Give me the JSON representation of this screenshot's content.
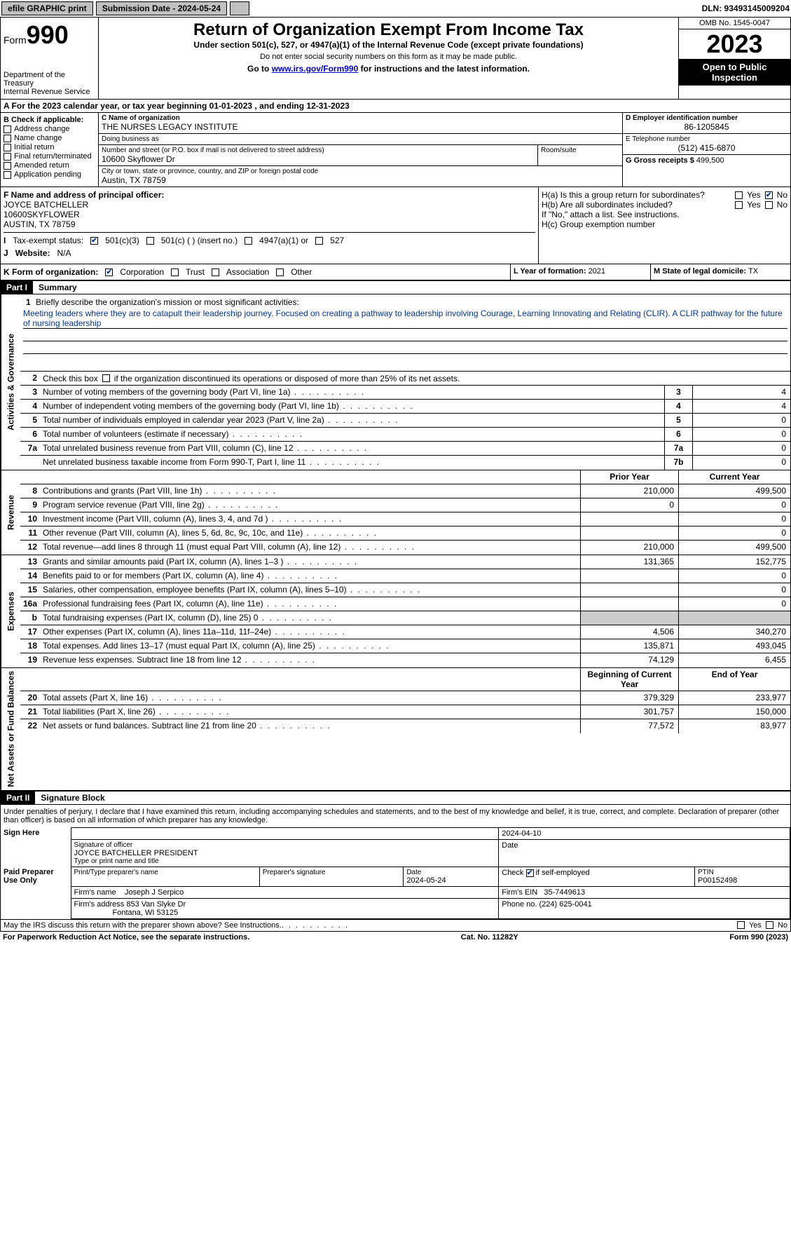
{
  "topbar": {
    "efile": "efile GRAPHIC print",
    "submission_label": "Submission Date - 2024-05-24",
    "dln": "DLN: 93493145009204"
  },
  "header": {
    "form_prefix": "Form",
    "form_number": "990",
    "dept": "Department of the Treasury",
    "irs": "Internal Revenue Service",
    "title": "Return of Organization Exempt From Income Tax",
    "subtitle": "Under section 501(c), 527, or 4947(a)(1) of the Internal Revenue Code (except private foundations)",
    "warn": "Do not enter social security numbers on this form as it may be made public.",
    "goto_prefix": "Go to ",
    "goto_link": "www.irs.gov/Form990",
    "goto_suffix": " for instructions and the latest information.",
    "omb": "OMB No. 1545-0047",
    "year": "2023",
    "inspect": "Open to Public Inspection"
  },
  "rowA": {
    "text_prefix": "A For the 2023 calendar year, or tax year beginning ",
    "begin": "01-01-2023",
    "mid": " , and ending ",
    "end": "12-31-2023"
  },
  "colB": {
    "header": "B Check if applicable:",
    "items": [
      "Address change",
      "Name change",
      "Initial return",
      "Final return/terminated",
      "Amended return",
      "Application pending"
    ]
  },
  "colC": {
    "name_label": "C Name of organization",
    "name": "THE NURSES LEGACY INSTITUTE",
    "dba_label": "Doing business as",
    "dba": "",
    "street_label": "Number and street (or P.O. box if mail is not delivered to street address)",
    "street": "10600 Skyflower Dr",
    "suite_label": "Room/suite",
    "city_label": "City or town, state or province, country, and ZIP or foreign postal code",
    "city": "Austin, TX  78759"
  },
  "colD": {
    "ein_label": "D Employer identification number",
    "ein": "86-1205845",
    "phone_label": "E Telephone number",
    "phone": "(512) 415-6870",
    "gross_label": "G Gross receipts $ ",
    "gross": "499,500"
  },
  "sectionF": {
    "label": "F Name and address of principal officer:",
    "name": "JOYCE BATCHELLER",
    "street": "10600SKYFLOWER",
    "city": "AUSTIN, TX  78759"
  },
  "statusI": {
    "label": "Tax-exempt status:",
    "opt1": "501(c)(3)",
    "opt2": "501(c) (  ) (insert no.)",
    "opt3": "4947(a)(1) or",
    "opt4": "527"
  },
  "rowJ": {
    "label": "J",
    "website_label": "Website:",
    "website": "N/A"
  },
  "sectionH": {
    "ha": "H(a)  Is this a group return for subordinates?",
    "hb": "H(b)  Are all subordinates included?",
    "hb_note": "If \"No,\" attach a list. See instructions.",
    "hc": "H(c)  Group exemption number",
    "yes": "Yes",
    "no": "No"
  },
  "rowK": {
    "label": "K Form of organization:",
    "opts": [
      "Corporation",
      "Trust",
      "Association",
      "Other"
    ]
  },
  "rowL": {
    "label": "L Year of formation: ",
    "val": "2021"
  },
  "rowM": {
    "label": "M State of legal domicile: ",
    "val": "TX"
  },
  "part1": {
    "hdr": "Part I",
    "title": "Summary",
    "line1_label": "Briefly describe the organization's mission or most significant activities:",
    "mission": "Meeting leaders where they are to catapult their leadership journey. Focused on creating a pathway to leadership involving Courage, Learning Innovating and Relating (CLIR). A CLIR pathway for the future of nursing leadership",
    "line2": "Check this box       if the organization discontinued its operations or disposed of more than 25% of its net assets.",
    "side_ag": "Activities & Governance",
    "side_rev": "Revenue",
    "side_exp": "Expenses",
    "side_na": "Net Assets or Fund Balances",
    "hdr_prior": "Prior Year",
    "hdr_curr": "Current Year",
    "hdr_boy": "Beginning of Current Year",
    "hdr_eoy": "End of Year",
    "lines_ag": [
      {
        "n": "3",
        "d": "Number of voting members of the governing body (Part VI, line 1a)",
        "k": "3",
        "v": "4"
      },
      {
        "n": "4",
        "d": "Number of independent voting members of the governing body (Part VI, line 1b)",
        "k": "4",
        "v": "4"
      },
      {
        "n": "5",
        "d": "Total number of individuals employed in calendar year 2023 (Part V, line 2a)",
        "k": "5",
        "v": "0"
      },
      {
        "n": "6",
        "d": "Total number of volunteers (estimate if necessary)",
        "k": "6",
        "v": "0"
      },
      {
        "n": "7a",
        "d": "Total unrelated business revenue from Part VIII, column (C), line 12",
        "k": "7a",
        "v": "0"
      },
      {
        "n": "",
        "d": "Net unrelated business taxable income from Form 990-T, Part I, line 11",
        "k": "7b",
        "v": "0"
      }
    ],
    "lines_rev": [
      {
        "n": "8",
        "d": "Contributions and grants (Part VIII, line 1h)",
        "p": "210,000",
        "c": "499,500"
      },
      {
        "n": "9",
        "d": "Program service revenue (Part VIII, line 2g)",
        "p": "0",
        "c": "0"
      },
      {
        "n": "10",
        "d": "Investment income (Part VIII, column (A), lines 3, 4, and 7d )",
        "p": "",
        "c": "0"
      },
      {
        "n": "11",
        "d": "Other revenue (Part VIII, column (A), lines 5, 6d, 8c, 9c, 10c, and 11e)",
        "p": "",
        "c": "0"
      },
      {
        "n": "12",
        "d": "Total revenue—add lines 8 through 11 (must equal Part VIII, column (A), line 12)",
        "p": "210,000",
        "c": "499,500"
      }
    ],
    "lines_exp": [
      {
        "n": "13",
        "d": "Grants and similar amounts paid (Part IX, column (A), lines 1–3 )",
        "p": "131,365",
        "c": "152,775"
      },
      {
        "n": "14",
        "d": "Benefits paid to or for members (Part IX, column (A), line 4)",
        "p": "",
        "c": "0"
      },
      {
        "n": "15",
        "d": "Salaries, other compensation, employee benefits (Part IX, column (A), lines 5–10)",
        "p": "",
        "c": "0"
      },
      {
        "n": "16a",
        "d": "Professional fundraising fees (Part IX, column (A), line 11e)",
        "p": "",
        "c": "0"
      },
      {
        "n": "b",
        "d": "Total fundraising expenses (Part IX, column (D), line 25) 0",
        "p": "SHADE",
        "c": "SHADE"
      },
      {
        "n": "17",
        "d": "Other expenses (Part IX, column (A), lines 11a–11d, 11f–24e)",
        "p": "4,506",
        "c": "340,270"
      },
      {
        "n": "18",
        "d": "Total expenses. Add lines 13–17 (must equal Part IX, column (A), line 25)",
        "p": "135,871",
        "c": "493,045"
      },
      {
        "n": "19",
        "d": "Revenue less expenses. Subtract line 18 from line 12",
        "p": "74,129",
        "c": "6,455"
      }
    ],
    "lines_na": [
      {
        "n": "20",
        "d": "Total assets (Part X, line 16)",
        "p": "379,329",
        "c": "233,977"
      },
      {
        "n": "21",
        "d": "Total liabilities (Part X, line 26)",
        "p": "301,757",
        "c": "150,000"
      },
      {
        "n": "22",
        "d": "Net assets or fund balances. Subtract line 21 from line 20",
        "p": "77,572",
        "c": "83,977"
      }
    ]
  },
  "part2": {
    "hdr": "Part II",
    "title": "Signature Block",
    "perjury": "Under penalties of perjury, I declare that I have examined this return, including accompanying schedules and statements, and to the best of my knowledge and belief, it is true, correct, and complete. Declaration of preparer (other than officer) is based on all information of which preparer has any knowledge.",
    "sign_here": "Sign Here",
    "sig_officer_label": "Signature of officer",
    "sig_date": "2024-04-10",
    "officer_name": "JOYCE BATCHELLER  PRESIDENT",
    "type_label": "Type or print name and title",
    "paid": "Paid Preparer Use Only",
    "prep_name_label": "Print/Type preparer's name",
    "prep_sig_label": "Preparer's signature",
    "date_label": "Date",
    "date_val": "2024-05-24",
    "check_if": "Check",
    "self_emp": "if self-employed",
    "ptin_label": "PTIN",
    "ptin": "P00152498",
    "firm_name_label": "Firm's name",
    "firm_name": "Joseph J Serpico",
    "firm_ein_label": "Firm's EIN",
    "firm_ein": "35-7449613",
    "firm_addr_label": "Firm's address",
    "firm_addr1": "853 Van Slyke Dr",
    "firm_addr2": "Fontana, WI  53125",
    "firm_phone_label": "Phone no.",
    "firm_phone": "(224) 625-0041",
    "discuss": "May the IRS discuss this return with the preparer shown above? See Instructions."
  },
  "footer": {
    "pra": "For Paperwork Reduction Act Notice, see the separate instructions.",
    "cat": "Cat. No. 11282Y",
    "form": "Form 990 (2023)"
  }
}
